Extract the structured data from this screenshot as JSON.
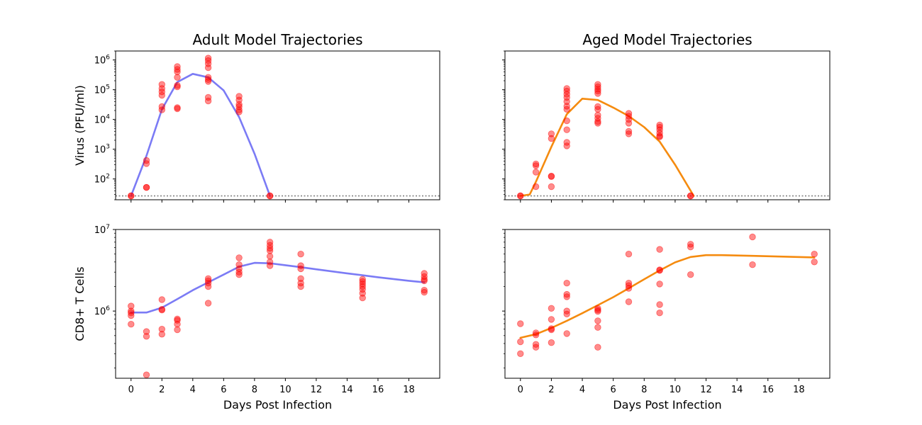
{
  "chart_data": [
    {
      "type": "scatter",
      "title": "Adult Model Trajectories",
      "xlabel": "",
      "ylabel": "Virus (PFU/ml)",
      "yscale": "log",
      "xlim": [
        -1,
        20
      ],
      "ylim": [
        20,
        2000000
      ],
      "ytick_labels": [
        "10^2",
        "10^3",
        "10^4",
        "10^5",
        "10^6"
      ],
      "detection_limit": 27,
      "fit_color": "#7b7bf5",
      "point_color": "#ff0000",
      "points": [
        [
          0,
          27
        ],
        [
          0,
          27
        ],
        [
          1,
          420
        ],
        [
          1,
          330
        ],
        [
          1,
          52
        ],
        [
          1,
          52
        ],
        [
          2,
          150000
        ],
        [
          2,
          110000
        ],
        [
          2,
          85000
        ],
        [
          2,
          65000
        ],
        [
          2,
          27000
        ],
        [
          2,
          21000
        ],
        [
          3,
          600000
        ],
        [
          3,
          480000
        ],
        [
          3,
          400000
        ],
        [
          3,
          260000
        ],
        [
          3,
          140000
        ],
        [
          3,
          125000
        ],
        [
          3,
          25000
        ],
        [
          3,
          23000
        ],
        [
          5,
          1150000
        ],
        [
          5,
          950000
        ],
        [
          5,
          750000
        ],
        [
          5,
          550000
        ],
        [
          5,
          260000
        ],
        [
          5,
          220000
        ],
        [
          5,
          190000
        ],
        [
          5,
          55000
        ],
        [
          5,
          42000
        ],
        [
          7,
          60000
        ],
        [
          7,
          45000
        ],
        [
          7,
          32000
        ],
        [
          7,
          27000
        ],
        [
          7,
          21000
        ],
        [
          7,
          18000
        ],
        [
          9,
          27
        ],
        [
          9,
          27
        ]
      ],
      "fit": [
        [
          0,
          27
        ],
        [
          1,
          600
        ],
        [
          2,
          22000
        ],
        [
          3,
          180000
        ],
        [
          4,
          340000
        ],
        [
          5,
          260000
        ],
        [
          6,
          95000
        ],
        [
          7,
          12000
        ],
        [
          8,
          700
        ],
        [
          9,
          27
        ]
      ]
    },
    {
      "type": "scatter",
      "title": "Aged Model Trajectories",
      "xlabel": "",
      "ylabel": "",
      "yscale": "log",
      "xlim": [
        -1,
        20
      ],
      "ylim": [
        20,
        2000000
      ],
      "detection_limit": 27,
      "fit_color": "#f58b0f",
      "point_color": "#ff0000",
      "points": [
        [
          0,
          27
        ],
        [
          0,
          27
        ],
        [
          1,
          320
        ],
        [
          1,
          280
        ],
        [
          1,
          170
        ],
        [
          1,
          55
        ],
        [
          2,
          3300
        ],
        [
          2,
          2300
        ],
        [
          2,
          125
        ],
        [
          2,
          120
        ],
        [
          2,
          55
        ],
        [
          3,
          110000
        ],
        [
          3,
          90000
        ],
        [
          3,
          70000
        ],
        [
          3,
          55000
        ],
        [
          3,
          40000
        ],
        [
          3,
          28000
        ],
        [
          3,
          22000
        ],
        [
          3,
          9000
        ],
        [
          3,
          4500
        ],
        [
          3,
          1700
        ],
        [
          3,
          1300
        ],
        [
          5,
          150000
        ],
        [
          5,
          125000
        ],
        [
          5,
          105000
        ],
        [
          5,
          90000
        ],
        [
          5,
          75000
        ],
        [
          5,
          27000
        ],
        [
          5,
          22000
        ],
        [
          5,
          14000
        ],
        [
          5,
          11000
        ],
        [
          5,
          8500
        ],
        [
          5,
          7500
        ],
        [
          7,
          16000
        ],
        [
          7,
          13000
        ],
        [
          7,
          10000
        ],
        [
          7,
          7500
        ],
        [
          7,
          4000
        ],
        [
          7,
          3300
        ],
        [
          9,
          6500
        ],
        [
          9,
          5500
        ],
        [
          9,
          4500
        ],
        [
          9,
          3500
        ],
        [
          9,
          2800
        ],
        [
          9,
          2600
        ],
        [
          11,
          27
        ],
        [
          11,
          27
        ]
      ],
      "fit": [
        [
          0,
          27
        ],
        [
          0.6,
          30
        ],
        [
          1,
          80
        ],
        [
          2,
          1200
        ],
        [
          3,
          15000
        ],
        [
          4,
          50000
        ],
        [
          5,
          45000
        ],
        [
          6,
          25000
        ],
        [
          7,
          13000
        ],
        [
          8,
          5500
        ],
        [
          9,
          1800
        ],
        [
          10,
          300
        ],
        [
          11.2,
          27
        ]
      ]
    },
    {
      "type": "scatter",
      "title": "",
      "xlabel": "Days Post Infection",
      "ylabel": "CD8+ T Cells",
      "yscale": "log",
      "xlim": [
        -1,
        20
      ],
      "ylim": [
        150000,
        10000000
      ],
      "xtick_labels": [
        "0",
        "2",
        "4",
        "6",
        "8",
        "10",
        "12",
        "14",
        "16",
        "18"
      ],
      "ytick_labels": [
        "10^6",
        "10^7"
      ],
      "fit_color": "#7b7bf5",
      "point_color": "#ff0000",
      "points": [
        [
          0,
          1150000
        ],
        [
          0,
          1000000
        ],
        [
          0,
          950000
        ],
        [
          0,
          880000
        ],
        [
          0,
          690000
        ],
        [
          1,
          560000
        ],
        [
          1,
          490000
        ],
        [
          1,
          165000
        ],
        [
          2,
          1380000
        ],
        [
          2,
          1050000
        ],
        [
          2,
          1030000
        ],
        [
          2,
          600000
        ],
        [
          2,
          520000
        ],
        [
          3,
          800000
        ],
        [
          3,
          770000
        ],
        [
          3,
          690000
        ],
        [
          3,
          590000
        ],
        [
          5,
          2500000
        ],
        [
          5,
          2350000
        ],
        [
          5,
          2200000
        ],
        [
          5,
          2000000
        ],
        [
          5,
          1250000
        ],
        [
          7,
          4500000
        ],
        [
          7,
          3700000
        ],
        [
          7,
          3300000
        ],
        [
          7,
          3000000
        ],
        [
          7,
          2800000
        ],
        [
          9,
          7000000
        ],
        [
          9,
          6400000
        ],
        [
          9,
          5900000
        ],
        [
          9,
          5500000
        ],
        [
          9,
          4700000
        ],
        [
          9,
          4000000
        ],
        [
          9,
          3600000
        ],
        [
          11,
          5000000
        ],
        [
          11,
          3600000
        ],
        [
          11,
          3300000
        ],
        [
          11,
          2500000
        ],
        [
          11,
          2200000
        ],
        [
          11,
          2000000
        ],
        [
          15,
          2450000
        ],
        [
          15,
          2300000
        ],
        [
          15,
          2150000
        ],
        [
          15,
          2000000
        ],
        [
          15,
          1850000
        ],
        [
          15,
          1650000
        ],
        [
          15,
          1450000
        ],
        [
          19,
          2900000
        ],
        [
          19,
          2650000
        ],
        [
          19,
          2450000
        ],
        [
          19,
          2350000
        ],
        [
          19,
          1800000
        ],
        [
          19,
          1700000
        ]
      ],
      "fit": [
        [
          0,
          960000
        ],
        [
          1,
          960000
        ],
        [
          2,
          1100000
        ],
        [
          3,
          1400000
        ],
        [
          4,
          1800000
        ],
        [
          5,
          2250000
        ],
        [
          6,
          2800000
        ],
        [
          7,
          3500000
        ],
        [
          8,
          3900000
        ],
        [
          9,
          3850000
        ],
        [
          10,
          3650000
        ],
        [
          11,
          3450000
        ],
        [
          12,
          3250000
        ],
        [
          14,
          2900000
        ],
        [
          16,
          2600000
        ],
        [
          18,
          2350000
        ],
        [
          19,
          2250000
        ]
      ]
    },
    {
      "type": "scatter",
      "title": "",
      "xlabel": "Days Post Infection",
      "ylabel": "",
      "yscale": "log",
      "xlim": [
        -1,
        20
      ],
      "ylim": [
        150000,
        10000000
      ],
      "xtick_labels": [
        "0",
        "2",
        "4",
        "6",
        "8",
        "10",
        "12",
        "14",
        "16",
        "18"
      ],
      "fit_color": "#f58b0f",
      "point_color": "#ff0000",
      "points": [
        [
          0,
          700000
        ],
        [
          0,
          420000
        ],
        [
          0,
          300000
        ],
        [
          1,
          540000
        ],
        [
          1,
          510000
        ],
        [
          1,
          390000
        ],
        [
          1,
          360000
        ],
        [
          2,
          1080000
        ],
        [
          2,
          790000
        ],
        [
          2,
          610000
        ],
        [
          2,
          590000
        ],
        [
          2,
          410000
        ],
        [
          3,
          2200000
        ],
        [
          3,
          1600000
        ],
        [
          3,
          1500000
        ],
        [
          3,
          1000000
        ],
        [
          3,
          920000
        ],
        [
          3,
          530000
        ],
        [
          5,
          1080000
        ],
        [
          5,
          1030000
        ],
        [
          5,
          990000
        ],
        [
          5,
          760000
        ],
        [
          5,
          630000
        ],
        [
          5,
          360000
        ],
        [
          7,
          5000000
        ],
        [
          7,
          2200000
        ],
        [
          7,
          2050000
        ],
        [
          7,
          1900000
        ],
        [
          7,
          1300000
        ],
        [
          9,
          5700000
        ],
        [
          9,
          3200000
        ],
        [
          9,
          3150000
        ],
        [
          9,
          2150000
        ],
        [
          9,
          1200000
        ],
        [
          9,
          950000
        ],
        [
          11,
          6600000
        ],
        [
          11,
          6100000
        ],
        [
          11,
          2800000
        ],
        [
          15,
          8100000
        ],
        [
          15,
          3700000
        ],
        [
          19,
          5000000
        ],
        [
          19,
          4000000
        ]
      ],
      "fit": [
        [
          0,
          470000
        ],
        [
          1,
          520000
        ],
        [
          2,
          620000
        ],
        [
          3,
          760000
        ],
        [
          4,
          940000
        ],
        [
          5,
          1180000
        ],
        [
          6,
          1480000
        ],
        [
          7,
          1900000
        ],
        [
          8,
          2450000
        ],
        [
          9,
          3150000
        ],
        [
          10,
          3950000
        ],
        [
          11,
          4600000
        ],
        [
          12,
          4850000
        ],
        [
          13,
          4850000
        ],
        [
          15,
          4750000
        ],
        [
          17,
          4650000
        ],
        [
          19,
          4550000
        ]
      ]
    }
  ]
}
